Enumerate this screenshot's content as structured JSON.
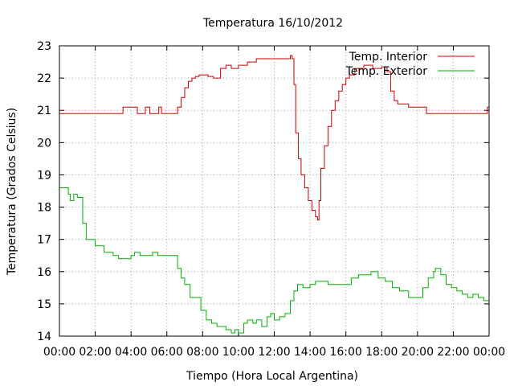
{
  "chart_data": {
    "type": "line",
    "title": "Temperatura 16/10/2012",
    "xlabel": "Tiempo (Hora Local Argentina)",
    "ylabel": "Temperatura (Grados Celsius)",
    "xlim": [
      0,
      24
    ],
    "ylim": [
      14,
      23
    ],
    "x_tick_labels": [
      "00:00",
      "02:00",
      "04:00",
      "06:00",
      "08:00",
      "10:00",
      "12:00",
      "14:00",
      "16:00",
      "18:00",
      "20:00",
      "22:00",
      "00:00"
    ],
    "y_ticks": [
      14,
      15,
      16,
      17,
      18,
      19,
      20,
      21,
      22,
      23
    ],
    "grid": true,
    "legend_position": "top-right",
    "series": [
      {
        "name": "Temp. Interior",
        "color": "#cc0000",
        "x": [
          0,
          3.5,
          3.55,
          4.3,
          4.35,
          4.75,
          4.8,
          5.0,
          5.05,
          5.5,
          5.55,
          5.65,
          5.7,
          6.5,
          6.6,
          6.8,
          7.0,
          7.2,
          7.4,
          7.6,
          7.8,
          8.0,
          8.3,
          8.6,
          9.0,
          9.3,
          9.6,
          10.0,
          10.5,
          11.0,
          11.5,
          12.0,
          12.5,
          12.9,
          13.0,
          13.1,
          13.2,
          13.35,
          13.5,
          13.7,
          13.9,
          14.1,
          14.3,
          14.42,
          14.5,
          14.6,
          14.8,
          15.0,
          15.2,
          15.4,
          15.6,
          15.8,
          16.0,
          16.2,
          16.5,
          17.0,
          17.5,
          18.0,
          18.3,
          18.5,
          18.7,
          18.9,
          19.0,
          19.5,
          20.0,
          20.5,
          21.0,
          22.0,
          23.0,
          23.85,
          23.9,
          24.0
        ],
        "y": [
          20.9,
          20.9,
          21.1,
          21.1,
          20.9,
          20.9,
          21.1,
          21.1,
          20.9,
          20.9,
          21.1,
          21.1,
          20.9,
          20.9,
          21.1,
          21.4,
          21.7,
          21.9,
          22.0,
          22.05,
          22.1,
          22.1,
          22.05,
          22.0,
          22.3,
          22.4,
          22.3,
          22.4,
          22.5,
          22.6,
          22.6,
          22.6,
          22.6,
          22.7,
          22.6,
          21.8,
          20.3,
          19.5,
          19.0,
          18.6,
          18.2,
          17.9,
          17.7,
          17.6,
          18.2,
          19.2,
          19.9,
          20.5,
          21.0,
          21.3,
          21.6,
          21.8,
          22.0,
          22.1,
          22.3,
          22.4,
          22.3,
          22.35,
          22.2,
          21.6,
          21.3,
          21.2,
          21.2,
          21.1,
          21.1,
          20.9,
          20.9,
          20.9,
          20.9,
          20.9,
          21.1,
          21.0
        ]
      },
      {
        "name": "Temp. Exterior",
        "color": "#00b000",
        "x": [
          0,
          0.4,
          0.5,
          0.6,
          0.8,
          1.0,
          1.1,
          1.3,
          1.5,
          2.0,
          2.5,
          3.0,
          3.3,
          3.6,
          4.0,
          4.2,
          4.5,
          5.0,
          5.2,
          5.5,
          6.0,
          6.2,
          6.5,
          6.6,
          6.8,
          7.0,
          7.3,
          7.6,
          7.9,
          8.2,
          8.5,
          8.8,
          9.0,
          9.3,
          9.6,
          9.8,
          10.0,
          10.3,
          10.5,
          10.8,
          11.0,
          11.3,
          11.6,
          11.8,
          12.0,
          12.3,
          12.6,
          12.9,
          13.1,
          13.3,
          13.6,
          14.0,
          14.3,
          14.6,
          15.0,
          15.5,
          16.0,
          16.3,
          16.7,
          17.0,
          17.4,
          17.8,
          18.2,
          18.6,
          19.0,
          19.5,
          20.0,
          20.3,
          20.6,
          20.9,
          21.0,
          21.3,
          21.6,
          21.9,
          22.2,
          22.5,
          22.8,
          23.1,
          23.4,
          23.7,
          24.0
        ],
        "y": [
          18.6,
          18.6,
          18.4,
          18.2,
          18.4,
          18.3,
          18.3,
          17.5,
          17.0,
          16.8,
          16.6,
          16.5,
          16.4,
          16.4,
          16.5,
          16.6,
          16.5,
          16.5,
          16.6,
          16.5,
          16.5,
          16.5,
          16.5,
          16.1,
          15.8,
          15.6,
          15.2,
          15.2,
          14.8,
          14.5,
          14.4,
          14.3,
          14.3,
          14.2,
          14.1,
          14.2,
          14.1,
          14.4,
          14.5,
          14.4,
          14.5,
          14.3,
          14.6,
          14.7,
          14.5,
          14.6,
          14.7,
          15.1,
          15.4,
          15.6,
          15.5,
          15.6,
          15.7,
          15.7,
          15.6,
          15.6,
          15.6,
          15.8,
          15.9,
          15.9,
          16.0,
          15.8,
          15.7,
          15.5,
          15.4,
          15.2,
          15.2,
          15.5,
          15.8,
          16.0,
          16.1,
          15.9,
          15.6,
          15.5,
          15.4,
          15.3,
          15.2,
          15.3,
          15.2,
          15.1,
          15.0
        ]
      }
    ]
  }
}
